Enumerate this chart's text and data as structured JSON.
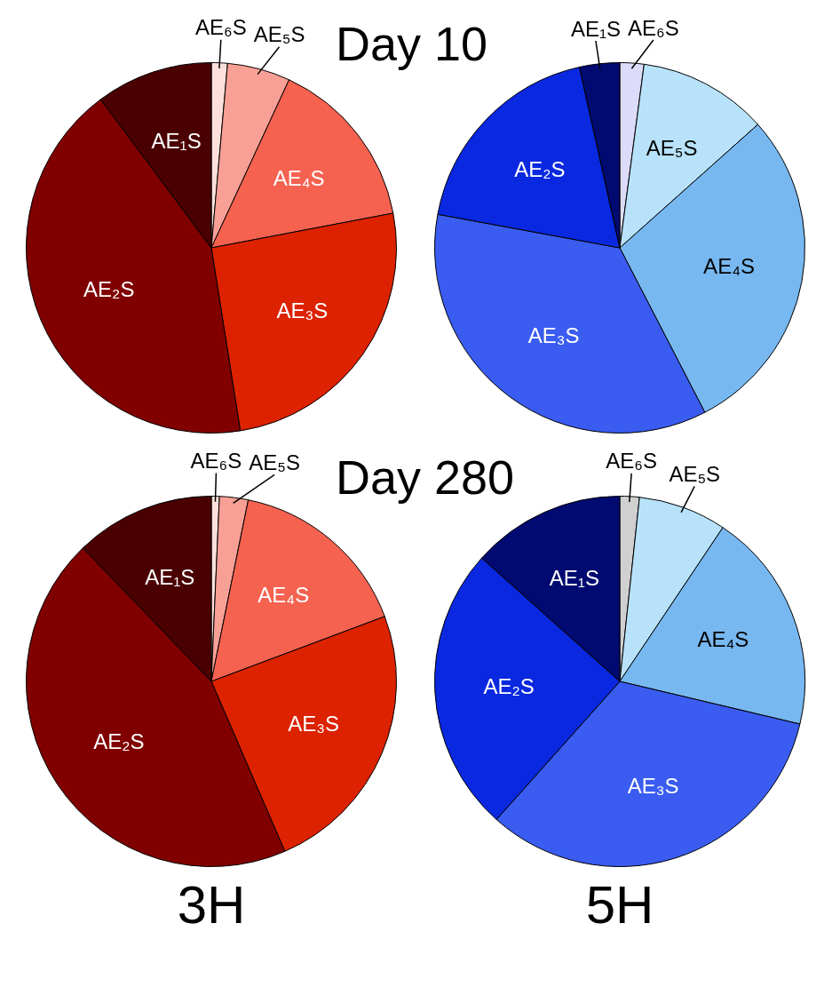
{
  "chart_data": [
    {
      "type": "pie",
      "categories": [
        "AE₆S",
        "AE₅S",
        "AE₄S",
        "AE₃S",
        "AE₂S",
        "AE₁S"
      ],
      "values": [
        1.4,
        5.5,
        15.1,
        25.5,
        42.3,
        10.2
      ],
      "colors": [
        "#fde0dc",
        "#f8a096",
        "#f56250",
        "#dc2200",
        "#800000",
        "#4a0000"
      ],
      "annotations": [
        "Day 10"
      ],
      "legend": false
    },
    {
      "type": "pie",
      "categories": [
        "AE₆S",
        "AE₅S",
        "AE₄S",
        "AE₃S",
        "AE₂S",
        "AE₁S"
      ],
      "values": [
        2.1,
        11.3,
        29.0,
        35.5,
        18.6,
        3.5
      ],
      "colors": [
        "#dcdcfa",
        "#b8e2fa",
        "#78b8f0",
        "#3a5cf0",
        "#0a28e0",
        "#000a70"
      ],
      "legend": false
    },
    {
      "type": "pie",
      "categories": [
        "AE₆S",
        "AE₅S",
        "AE₄S",
        "AE₃S",
        "AE₂S",
        "AE₁S"
      ],
      "values": [
        0.7,
        2.5,
        16.1,
        24.2,
        44.3,
        12.2
      ],
      "colors": [
        "#fde0dc",
        "#f8a096",
        "#f56250",
        "#dc2200",
        "#800000",
        "#4a0000"
      ],
      "annotations": [
        "Day 280"
      ],
      "xlabel": "3H",
      "legend": false
    },
    {
      "type": "pie",
      "categories": [
        "AE₆S",
        "AE₅S",
        "AE₄S",
        "AE₃S",
        "AE₂S",
        "AE₁S"
      ],
      "values": [
        1.7,
        7.7,
        19.3,
        32.9,
        25.0,
        13.4
      ],
      "colors": [
        "#d0d0d0",
        "#b8e2fa",
        "#78b8f0",
        "#3a5cf0",
        "#0a28e0",
        "#000a70"
      ],
      "xlabel": "5H",
      "legend": false
    }
  ]
}
